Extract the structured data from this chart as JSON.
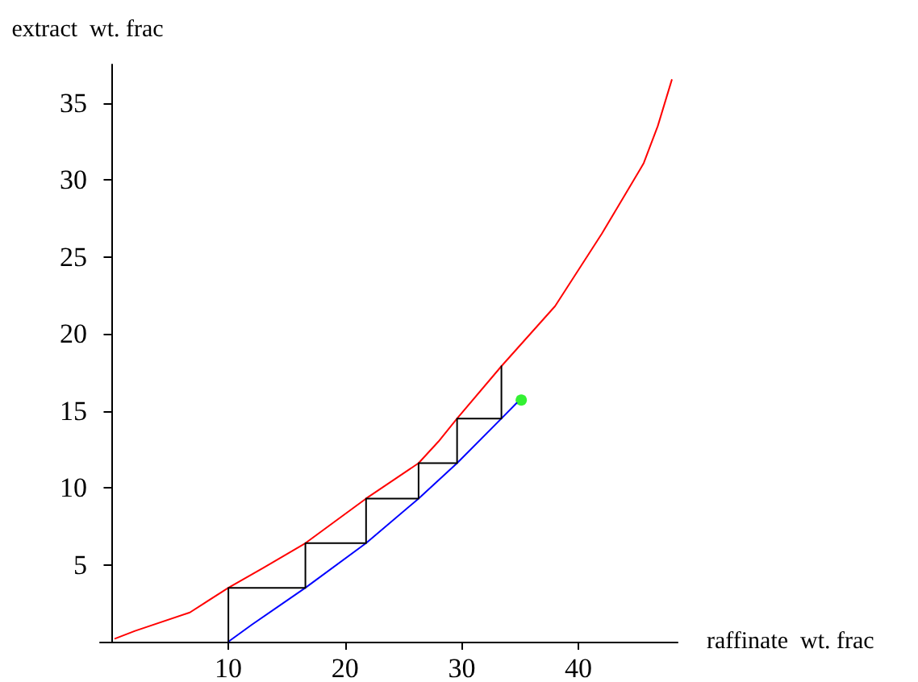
{
  "chart_data": {
    "type": "line",
    "xlabel": "raffinate  wt. frac",
    "ylabel": "extract  wt. frac",
    "xlim": [
      -1,
      48.5
    ],
    "ylim": [
      0,
      37.5
    ],
    "xticks": [
      10,
      20,
      30,
      40
    ],
    "yticks": [
      5,
      10,
      15,
      20,
      25,
      30,
      35
    ],
    "grid": false,
    "marker": "none",
    "line_style": "solid",
    "series": [
      {
        "color": "#ff0000",
        "x": [
          0.3,
          2,
          6.7,
          10,
          13,
          16.6,
          21.8,
          26.3,
          28,
          29.6,
          33.4,
          38,
          42,
          45.3,
          45.6,
          46.8,
          48
        ],
        "values": [
          0.2,
          0.7,
          1.9,
          3.5,
          4.8,
          6.4,
          9.3,
          11.6,
          13,
          14.5,
          17.9,
          21.8,
          26.5,
          30.7,
          31.1,
          33.5,
          36.5
        ]
      },
      {
        "color": "#0000ff",
        "x": [
          10,
          12,
          16.6,
          21.8,
          26.3,
          29.6,
          33.4,
          34.7
        ],
        "values": [
          0,
          1.1,
          3.5,
          6.4,
          9.3,
          11.6,
          14.5,
          15.5
        ]
      },
      {
        "color": "#000000",
        "x": [
          10,
          10,
          16.6,
          16.6,
          21.8,
          21.8,
          26.3,
          26.3,
          29.6,
          29.6,
          33.4,
          33.4
        ],
        "values": [
          0,
          3.5,
          3.5,
          6.4,
          6.4,
          9.3,
          9.3,
          11.6,
          11.6,
          14.5,
          14.5,
          17.9
        ]
      },
      {
        "type": "scatter",
        "color": "#00ee00",
        "marker": "circle",
        "x": [
          35.1
        ],
        "values": [
          15.7
        ]
      }
    ]
  }
}
